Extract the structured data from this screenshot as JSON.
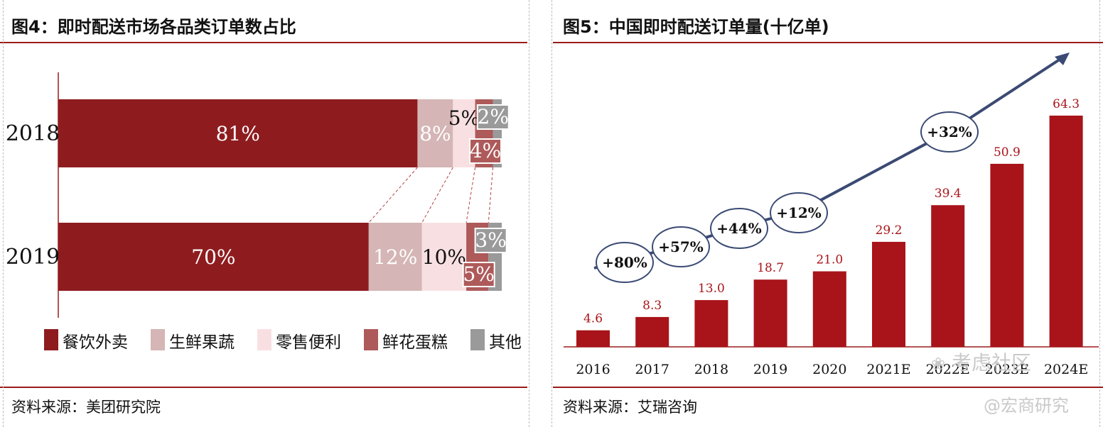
{
  "left": {
    "title": "图4：即时配送市场各品类订单数占比",
    "source": "资料来源：美团研究院",
    "chart_data": {
      "type": "bar",
      "orientation": "horizontal-stacked-100",
      "categories": [
        "2018",
        "2019"
      ],
      "series": [
        {
          "name": "餐饮外卖",
          "values": [
            81,
            70
          ],
          "labels": [
            "81%",
            "70%"
          ],
          "color": "#8e1c1f"
        },
        {
          "name": "生鲜果蔬",
          "values": [
            8,
            12
          ],
          "labels": [
            "8%",
            "12%"
          ],
          "color": "#d5b5b5"
        },
        {
          "name": "零售便利",
          "values": [
            5,
            10
          ],
          "labels": [
            "5%",
            "10%"
          ],
          "color": "#f8e0e2"
        },
        {
          "name": "鲜花蛋糕",
          "values": [
            4,
            5
          ],
          "labels": [
            "4%",
            "5%"
          ],
          "color": "#ae5a5a"
        },
        {
          "name": "其他",
          "values": [
            2,
            3
          ],
          "labels": [
            "2%",
            "3%"
          ],
          "color": "#9a9a9a"
        }
      ],
      "legend_placement": "bottom"
    }
  },
  "right": {
    "title": "图5：中国即时配送订单量(十亿单)",
    "source": "资料来源：艾瑞咨询",
    "chart_data": {
      "type": "bar",
      "categories": [
        "2016",
        "2017",
        "2018",
        "2019",
        "2020",
        "2021E",
        "2022E",
        "2023E",
        "2024E"
      ],
      "values": [
        4.6,
        8.3,
        13.0,
        18.7,
        21.0,
        29.2,
        39.4,
        50.9,
        64.3
      ],
      "labels": [
        "4.6",
        "8.3",
        "13.0",
        "18.7",
        "21.0",
        "29.2",
        "39.4",
        "50.9",
        "64.3"
      ],
      "bar_color": "#a8141a",
      "label_color": "#a8141a",
      "ylim": [
        0,
        70
      ],
      "growth_annotations": [
        "+80%",
        "+57%",
        "+44%",
        "+12%",
        "+32%"
      ]
    }
  },
  "watermarks": {
    "site": "考虑社区",
    "account": "@宏商研究"
  }
}
